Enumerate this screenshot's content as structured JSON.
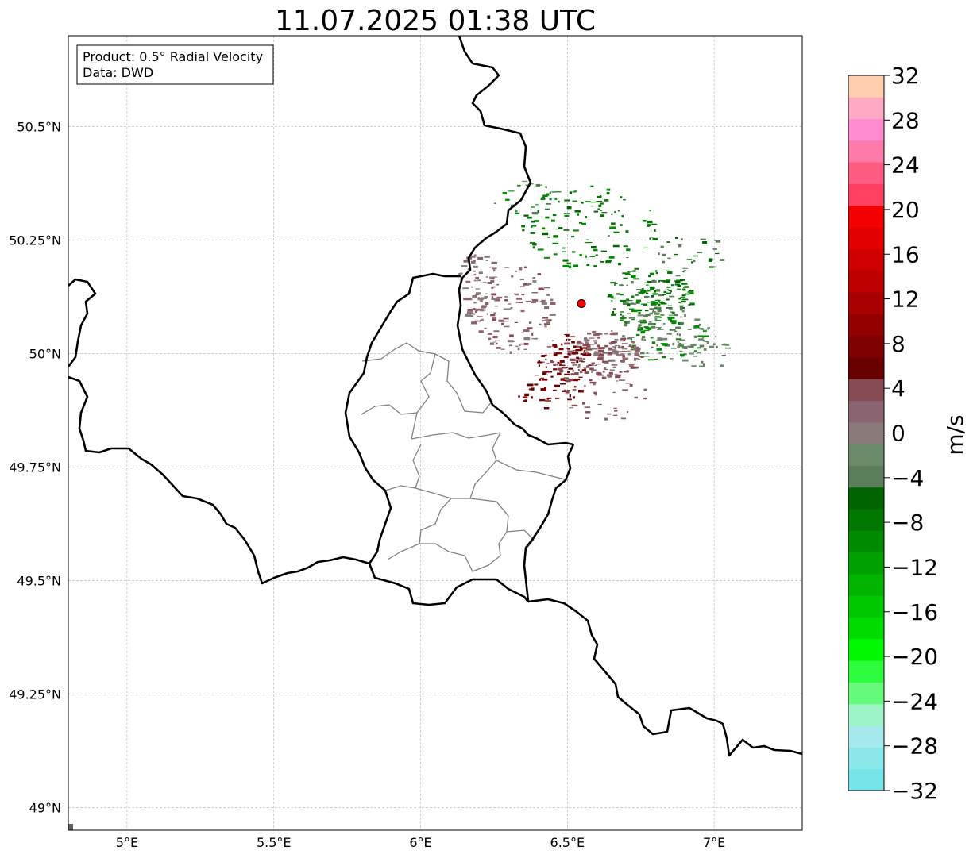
{
  "title": "11.07.2025 01:38 UTC",
  "info_box": {
    "product": "Product: 0.5° Radial Velocity",
    "data": "Data: DWD"
  },
  "map": {
    "lon_range": [
      4.8,
      7.3
    ],
    "lat_range": [
      48.95,
      50.7
    ],
    "lon_ticks": [
      {
        "value": 5.0,
        "label": "5°E"
      },
      {
        "value": 5.5,
        "label": "5.5°E"
      },
      {
        "value": 6.0,
        "label": "6°E"
      },
      {
        "value": 6.5,
        "label": "6.5°E"
      },
      {
        "value": 7.0,
        "label": "7°E"
      }
    ],
    "lat_ticks": [
      {
        "value": 49.0,
        "label": "49°N"
      },
      {
        "value": 49.25,
        "label": "49.25°N"
      },
      {
        "value": 49.5,
        "label": "49.5°N"
      },
      {
        "value": 49.75,
        "label": "49.75°N"
      },
      {
        "value": 50.0,
        "label": "50°N"
      },
      {
        "value": 50.25,
        "label": "50.25°N"
      },
      {
        "value": 50.5,
        "label": "50.5°N"
      }
    ],
    "radar_site": {
      "lon": 6.548,
      "lat": 50.11,
      "color": "#ff0000"
    }
  },
  "colorbar": {
    "unit": "m/s",
    "range": [
      -32,
      32
    ],
    "tick_values": [
      -32,
      -28,
      -24,
      -20,
      -16,
      -12,
      -8,
      -4,
      0,
      4,
      8,
      12,
      16,
      20,
      24,
      28,
      32
    ],
    "tick_labels": [
      "−32",
      "−28",
      "−24",
      "−20",
      "−16",
      "−12",
      "−8",
      "−4",
      "0",
      "4",
      "8",
      "12",
      "16",
      "20",
      "24",
      "28",
      "32"
    ],
    "colors": [
      "#74e4e8",
      "#8ae8ea",
      "#a6eaee",
      "#9ef5c8",
      "#66fa7a",
      "#2efc3e",
      "#00f800",
      "#00dc00",
      "#00c800",
      "#00b400",
      "#00a000",
      "#008a00",
      "#007800",
      "#006400",
      "#5a7d5a",
      "#6a8a6a",
      "#8a7a7a",
      "#8a6470",
      "#864a52",
      "#680000",
      "#7e0000",
      "#920000",
      "#a80000",
      "#bc0000",
      "#d00000",
      "#e20000",
      "#f40000",
      "#ff4060",
      "#ff5a80",
      "#ff7aa8",
      "#ff8ad0",
      "#ffaac4",
      "#ffcfb0"
    ]
  },
  "boundary_color": "#000000",
  "district_color": "#808080"
}
